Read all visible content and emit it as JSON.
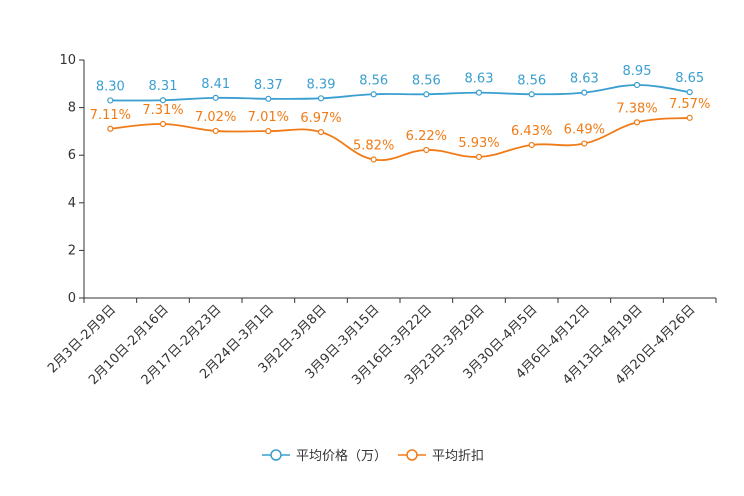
{
  "chart_data": {
    "type": "line",
    "categories": [
      "2月3日-2月9日",
      "2月10日-2月16日",
      "2月17日-2月23日",
      "2月24日-3月1日",
      "3月2日-3月8日",
      "3月9日-3月15日",
      "3月16日-3月22日",
      "3月23日-3月29日",
      "3月30日-4月5日",
      "4月6日-4月12日",
      "4月13日-4月19日",
      "4月20日-4月26日"
    ],
    "ylim": [
      0,
      10
    ],
    "yticks": [
      0,
      2,
      4,
      6,
      8,
      10
    ],
    "series": [
      {
        "name": "平均价格（万）",
        "color": "#3a9fd0",
        "values": [
          8.3,
          8.31,
          8.41,
          8.37,
          8.39,
          8.56,
          8.56,
          8.63,
          8.56,
          8.63,
          8.95,
          8.65
        ],
        "labels": [
          "8.30",
          "8.31",
          "8.41",
          "8.37",
          "8.39",
          "8.56",
          "8.56",
          "8.63",
          "8.56",
          "8.63",
          "8.95",
          "8.65"
        ]
      },
      {
        "name": "平均折扣",
        "color": "#f07b16",
        "values": [
          7.11,
          7.31,
          7.02,
          7.01,
          6.97,
          5.82,
          6.22,
          5.93,
          6.43,
          6.49,
          7.38,
          7.57
        ],
        "labels": [
          "7.11%",
          "7.31%",
          "7.02%",
          "7.01%",
          "6.97%",
          "5.82%",
          "6.22%",
          "5.93%",
          "6.43%",
          "6.49%",
          "7.38%",
          "7.57%"
        ]
      }
    ],
    "legend_position": "bottom-center"
  }
}
